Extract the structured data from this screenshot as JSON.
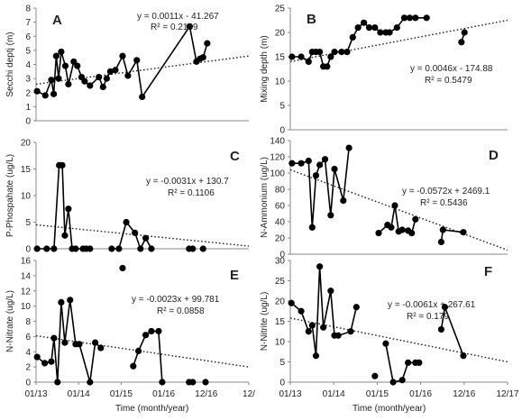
{
  "xlabel_left": "Time (month/year)",
  "xlabel_right": "Time (month/year)",
  "chart_data": [
    {
      "type": "scatter",
      "panel": "A",
      "ylabel": "Secchi deptj (m)",
      "ylim": [
        0,
        8
      ],
      "yticks": [
        "0",
        "1",
        "2",
        "3",
        "4",
        "5",
        "6",
        "7",
        "8"
      ],
      "xtick_labels": [],
      "trend": {
        "equation": "y = 0.0011x - 41.267",
        "r2": "R² = 0.2189",
        "start": 2.6,
        "end": 4.6
      },
      "series": [
        {
          "x": [
            "2013-01-10",
            "2013-03-20",
            "2013-05-10",
            "2013-05-30",
            "2013-06-20",
            "2013-07-10",
            "2013-08-01",
            "2013-09-05",
            "2013-10-01",
            "2013-11-15",
            "2013-12-15",
            "2014-01-20",
            "2014-02-15",
            "2014-04-01",
            "2014-06-15",
            "2014-07-20",
            "2014-08-20",
            "2014-09-20",
            "2014-11-01",
            "2015-01-01",
            "2015-02-15",
            "2015-05-01",
            "2015-06-15",
            "2016-07-20",
            "2016-09-15",
            "2016-10-15"
          ],
          "y": [
            2.1,
            1.8,
            2.9,
            1.9,
            4.6,
            3.0,
            4.9,
            3.9,
            2.6,
            4.2,
            3.9,
            3.1,
            2.8,
            2.5,
            3.1,
            2.4,
            3.0,
            3.5,
            3.6,
            4.6,
            3.2,
            4.3,
            1.7,
            6.7,
            4.2,
            4.4
          ]
        },
        {
          "x": [
            "2016-11-10",
            "2016-12-15"
          ],
          "y": [
            4.5,
            5.5
          ]
        }
      ]
    },
    {
      "type": "scatter",
      "panel": "B",
      "ylabel": "Mixing depth (m)",
      "ylim": [
        0,
        25
      ],
      "yticks": [
        "0",
        "5",
        "10",
        "15",
        "20",
        "25"
      ],
      "xtick_labels": [],
      "trend": {
        "equation": "y = 0.0046x - 174.88",
        "r2": "R² = 0.5479",
        "start": 14.0,
        "end": 22.5
      },
      "series": [
        {
          "x": [
            "2013-01-15",
            "2013-04-01",
            "2013-06-01",
            "2013-07-01",
            "2013-08-01",
            "2013-09-01",
            "2013-10-01",
            "2013-11-01",
            "2013-12-01",
            "2014-01-01",
            "2014-03-01",
            "2014-04-15",
            "2014-06-01",
            "2014-07-15",
            "2014-09-01",
            "2014-10-15",
            "2014-12-01",
            "2015-01-15",
            "2015-03-01",
            "2015-04-01",
            "2015-06-01",
            "2015-08-01",
            "2015-09-15",
            "2015-11-01",
            "2016-02-01"
          ],
          "y": [
            15,
            15,
            14,
            16,
            16,
            16,
            13,
            13,
            15,
            16,
            16,
            16,
            19,
            21,
            22,
            21,
            21,
            20,
            20,
            20,
            21,
            23,
            23,
            23,
            23
          ]
        },
        {
          "x": [
            "2016-11-15",
            "2016-12-10"
          ],
          "y": [
            18,
            20
          ]
        }
      ]
    },
    {
      "type": "scatter",
      "panel": "C",
      "ylabel": "P-Phospahate (ug/L)",
      "ylim": [
        0,
        20
      ],
      "yticks": [
        "0",
        "5",
        "10",
        "15",
        "20"
      ],
      "xtick_labels": [],
      "trend": {
        "equation": "y = -0.0031x + 130.7",
        "r2": "R² = 0.1106",
        "start": 4.5,
        "end": 0.5
      },
      "series": [
        {
          "x": [
            "2013-01-10",
            "2013-04-01",
            "2013-06-01",
            "2013-07-15",
            "2013-08-10",
            "2013-09-01",
            "2013-10-01",
            "2013-11-01",
            "2013-12-01",
            "2014-02-01",
            "2014-03-01",
            "2014-04-01"
          ],
          "y": [
            0,
            0,
            0,
            15.7,
            15.7,
            2.5,
            7.5,
            0,
            0,
            0,
            0,
            0
          ]
        },
        {
          "x": [
            "2014-10-01",
            "2014-12-01",
            "2015-02-01",
            "2015-04-15",
            "2015-06-01",
            "2015-07-15",
            "2015-09-01"
          ],
          "y": [
            0,
            0,
            5.0,
            3.0,
            0,
            2.0,
            0
          ]
        },
        {
          "x": [
            "2016-07-15",
            "2016-08-15"
          ],
          "y": [
            0,
            0
          ]
        },
        {
          "x": [
            "2016-11-10"
          ],
          "y": [
            0
          ]
        }
      ]
    },
    {
      "type": "scatter",
      "panel": "D",
      "ylabel": "N-Ammonium (ug/L)",
      "ylim": [
        0,
        140
      ],
      "yticks": [
        "0",
        "20",
        "40",
        "60",
        "80",
        "100",
        "120",
        "140"
      ],
      "xtick_labels": [],
      "trend": {
        "equation": "y = -0.0572x + 2469.1",
        "r2": "R² = 0.5436",
        "start": 104,
        "end": 5
      },
      "series": [
        {
          "x": [
            "2013-01-15",
            "2013-04-01",
            "2013-06-01",
            "2013-07-01",
            "2013-08-01",
            "2013-09-01",
            "2013-10-15",
            "2013-12-01",
            "2014-01-01",
            "2014-03-15",
            "2014-05-01"
          ],
          "y": [
            112,
            112,
            115,
            33,
            97,
            110,
            117,
            48,
            105,
            66,
            131
          ]
        },
        {
          "x": [
            "2015-01-01",
            "2015-03-15",
            "2015-04-15",
            "2015-05-15",
            "2015-06-15",
            "2015-07-15",
            "2015-09-01",
            "2015-10-01",
            "2015-11-01"
          ],
          "y": [
            26,
            36,
            33,
            60,
            28,
            30,
            29,
            26,
            43
          ]
        },
        {
          "x": [
            "2016-06-01",
            "2016-06-15",
            "2016-12-01"
          ],
          "y": [
            15,
            30,
            27
          ]
        }
      ]
    },
    {
      "type": "scatter",
      "panel": "E",
      "ylabel": "N-Nitrate (ug/L)",
      "ylim": [
        0,
        16
      ],
      "yticks": [
        "0",
        "2",
        "4",
        "6",
        "8",
        "10",
        "12",
        "14",
        "16"
      ],
      "xtick_labels": [
        "01/13",
        "01/14",
        "01/15",
        "01/16",
        "12/16",
        "12/"
      ],
      "trend": {
        "equation": "y = -0.0023x + 99.781",
        "r2": "R² = 0.0858",
        "start": 6.1,
        "end": 2.0
      },
      "series": [
        {
          "x": [
            "2013-01-10",
            "2013-03-15",
            "2013-05-10",
            "2013-06-01",
            "2013-07-01",
            "2013-08-01",
            "2013-09-01",
            "2013-10-15",
            "2013-12-01",
            "2014-01-01",
            "2014-04-01",
            "2014-05-15",
            "2014-07-01"
          ],
          "y": [
            3.3,
            2.5,
            2.7,
            5.8,
            0,
            10.5,
            5.2,
            10.8,
            5.0,
            5.0,
            0,
            5.2,
            4.5
          ]
        },
        {
          "x": [
            "2015-01-01"
          ],
          "y": [
            15
          ]
        },
        {
          "x": [
            "2015-04-01",
            "2015-05-15",
            "2015-07-15",
            "2015-09-01",
            "2015-11-01",
            "2015-12-01"
          ],
          "y": [
            2.1,
            4.1,
            6.2,
            6.7,
            6.7,
            0
          ]
        },
        {
          "x": [
            "2016-07-15",
            "2016-08-15"
          ],
          "y": [
            0,
            0
          ]
        },
        {
          "x": [
            "2016-12-01"
          ],
          "y": [
            0
          ]
        }
      ]
    },
    {
      "type": "scatter",
      "panel": "F",
      "ylabel": "N-Nitrite (ug/L)",
      "ylim": [
        0,
        30
      ],
      "yticks": [
        "0",
        "5",
        "10",
        "15",
        "20",
        "25",
        "30"
      ],
      "xtick_labels": [
        "01/13",
        "01/14",
        "01/15",
        "01/16",
        "12/16",
        "12/17"
      ],
      "trend": {
        "equation": "y = -0.0061x + 267.61",
        "r2": "R² = 0.179",
        "start": 15.8,
        "end": 5.0
      },
      "series": [
        {
          "x": [
            "2013-01-10",
            "2013-04-01",
            "2013-06-01",
            "2013-07-01",
            "2013-08-01",
            "2013-09-01",
            "2013-10-01",
            "2013-12-01",
            "2014-01-01",
            "2014-02-01",
            "2014-05-15",
            "2014-07-01"
          ],
          "y": [
            19.5,
            17.5,
            12.5,
            14.0,
            6.5,
            28.5,
            13.5,
            22.5,
            11.5,
            11.5,
            12.5,
            18.5
          ]
        },
        {
          "x": [
            "2014-12-01"
          ],
          "y": [
            1.5
          ]
        },
        {
          "x": [
            "2015-03-01",
            "2015-05-01",
            "2015-07-15",
            "2015-09-01",
            "2015-11-01",
            "2015-12-01"
          ],
          "y": [
            9.5,
            0,
            0.5,
            4.8,
            4.8,
            4.8
          ]
        },
        {
          "x": [
            "2016-06-01",
            "2016-07-01",
            "2016-12-01"
          ],
          "y": [
            13.0,
            18.5,
            6.5
          ]
        }
      ]
    }
  ]
}
